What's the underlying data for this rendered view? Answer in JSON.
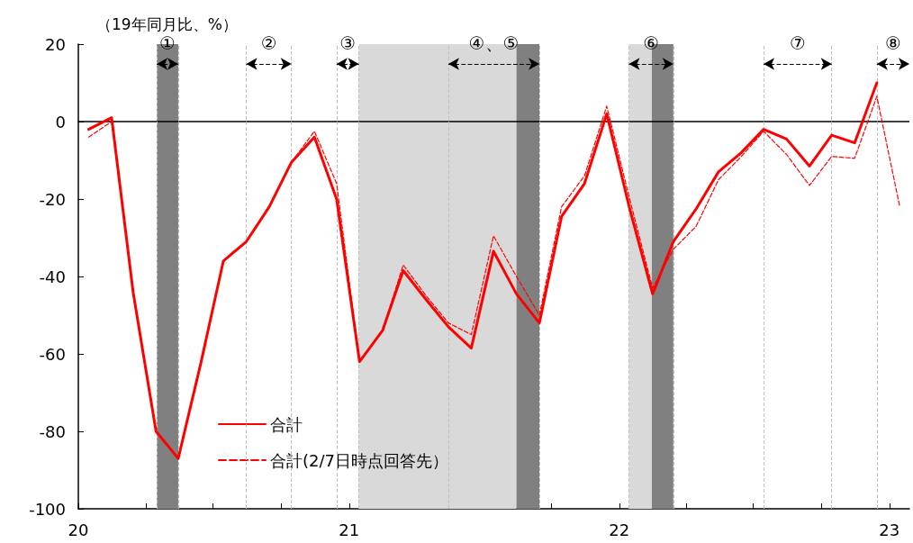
{
  "chart_data": {
    "type": "line",
    "ylabel": "（19年同月比、%）",
    "x": [
      "2020-01-15",
      "2020-02-15",
      "2020-03-15",
      "2020-04-15",
      "2020-05-15",
      "2020-06-15",
      "2020-07-15",
      "2020-08-15",
      "2020-09-15",
      "2020-10-15",
      "2020-11-15",
      "2020-12-15",
      "2021-01-15",
      "2021-02-15",
      "2021-03-15",
      "2021-04-15",
      "2021-05-15",
      "2021-06-15",
      "2021-07-15",
      "2021-08-15",
      "2021-09-15",
      "2021-10-15",
      "2021-11-15",
      "2021-12-15",
      "2022-01-15",
      "2022-02-15",
      "2022-03-15",
      "2022-04-15",
      "2022-05-15",
      "2022-06-15",
      "2022-07-15",
      "2022-08-15",
      "2022-09-15",
      "2022-10-15",
      "2022-11-15",
      "2022-12-15",
      "2023-01-15"
    ],
    "series": [
      {
        "name": "合計",
        "color": "#ff0000",
        "line_style": "solid",
        "values": [
          -2,
          1,
          -44,
          -80,
          -87,
          -62,
          -36,
          -31,
          -22,
          -10.5,
          -4,
          -20,
          -62,
          -54,
          -38.5,
          -46,
          -53,
          -58.5,
          -33.5,
          -44.5,
          -52,
          -24.5,
          -16,
          2,
          -22.5,
          -44.5,
          -31,
          -22.5,
          -13,
          -8,
          -2,
          -4.5,
          -11.5,
          -3.5,
          -5.5,
          10,
          null
        ]
      },
      {
        "name": "合計(2/7日時点回答先）",
        "color": "#ff0000",
        "line_style": "dashed",
        "values": [
          -4,
          0,
          -44,
          -80,
          -87,
          -62,
          -36,
          -31,
          -22,
          -10.5,
          -2.5,
          -16,
          -62,
          -54,
          -37,
          -45,
          -52,
          -55,
          -29.5,
          -40,
          -50,
          -22,
          -14,
          4,
          -20,
          -43,
          -33,
          -27,
          -15,
          -9,
          -2.5,
          -8.5,
          -16.5,
          -9,
          -9.5,
          6.5,
          -22
        ]
      }
    ],
    "xlim": [
      "2020-01-01",
      "2023-01-28"
    ],
    "xticks": [
      {
        "value": "2020",
        "label": "20"
      },
      {
        "value": "2020-04-01",
        "label": null
      },
      {
        "value": "2020-07-01",
        "label": null
      },
      {
        "value": "2020-10-01",
        "label": null
      },
      {
        "value": "2021",
        "label": "21"
      },
      {
        "value": "2021-04-01",
        "label": null
      },
      {
        "value": "2021-07-01",
        "label": null
      },
      {
        "value": "2021-10-01",
        "label": null
      },
      {
        "value": "2022",
        "label": "22"
      },
      {
        "value": "2022-04-01",
        "label": null
      },
      {
        "value": "2022-07-01",
        "label": null
      },
      {
        "value": "2022-10-01",
        "label": null
      },
      {
        "value": "2023",
        "label": "23"
      }
    ],
    "ylim": [
      -100,
      20
    ],
    "yticks": [
      -100,
      -80,
      -60,
      -40,
      -20,
      0,
      20
    ],
    "ref_lines": [
      {
        "axis": "y",
        "value": 0,
        "color": "#000000",
        "line_style": "solid"
      },
      {
        "axis": "x",
        "value": "2020-04-16",
        "color": "#c0c0c0",
        "line_style": "dashed"
      },
      {
        "axis": "x",
        "value": "2020-05-15",
        "color": "#c0c0c0",
        "line_style": "dashed"
      },
      {
        "axis": "x",
        "value": "2020-08-15",
        "color": "#c0c0c0",
        "line_style": "dashed"
      },
      {
        "axis": "x",
        "value": "2020-10-15",
        "color": "#c0c0c0",
        "line_style": "dashed"
      },
      {
        "axis": "x",
        "value": "2020-12-15",
        "color": "#c0c0c0",
        "line_style": "dashed"
      },
      {
        "axis": "x",
        "value": "2021-01-14",
        "color": "#c0c0c0",
        "line_style": "dashed"
      },
      {
        "axis": "x",
        "value": "2021-05-15",
        "color": "#c0c0c0",
        "line_style": "dashed"
      },
      {
        "axis": "x",
        "value": "2021-09-15",
        "color": "#c0c0c0",
        "line_style": "dashed"
      },
      {
        "axis": "x",
        "value": "2022-01-14",
        "color": "#c0c0c0",
        "line_style": "dashed"
      },
      {
        "axis": "x",
        "value": "2022-03-15",
        "color": "#c0c0c0",
        "line_style": "dashed"
      },
      {
        "axis": "x",
        "value": "2022-07-15",
        "color": "#c0c0c0",
        "line_style": "dashed"
      },
      {
        "axis": "x",
        "value": "2022-10-15",
        "color": "#c0c0c0",
        "line_style": "dashed"
      },
      {
        "axis": "x",
        "value": "2022-12-15",
        "color": "#c0c0c0",
        "line_style": "dashed"
      }
    ],
    "bands": [
      {
        "axis": "x",
        "from": "2020-04-16",
        "to": "2020-05-15",
        "color": "#808080"
      },
      {
        "axis": "x",
        "from": "2021-01-14",
        "to": "2021-08-15",
        "color": "#d9d9d9"
      },
      {
        "axis": "x",
        "from": "2021-08-15",
        "to": "2021-09-15",
        "color": "#808080"
      },
      {
        "axis": "x",
        "from": "2022-01-14",
        "to": "2022-02-14",
        "color": "#d9d9d9"
      },
      {
        "axis": "x",
        "from": "2022-02-14",
        "to": "2022-03-15",
        "color": "#808080"
      }
    ],
    "annotations": [
      "①",
      "②",
      "③",
      "④、⑤",
      "⑥",
      "⑦",
      "⑧"
    ],
    "grid": false,
    "legend": "bottom left",
    "marker": "none"
  }
}
